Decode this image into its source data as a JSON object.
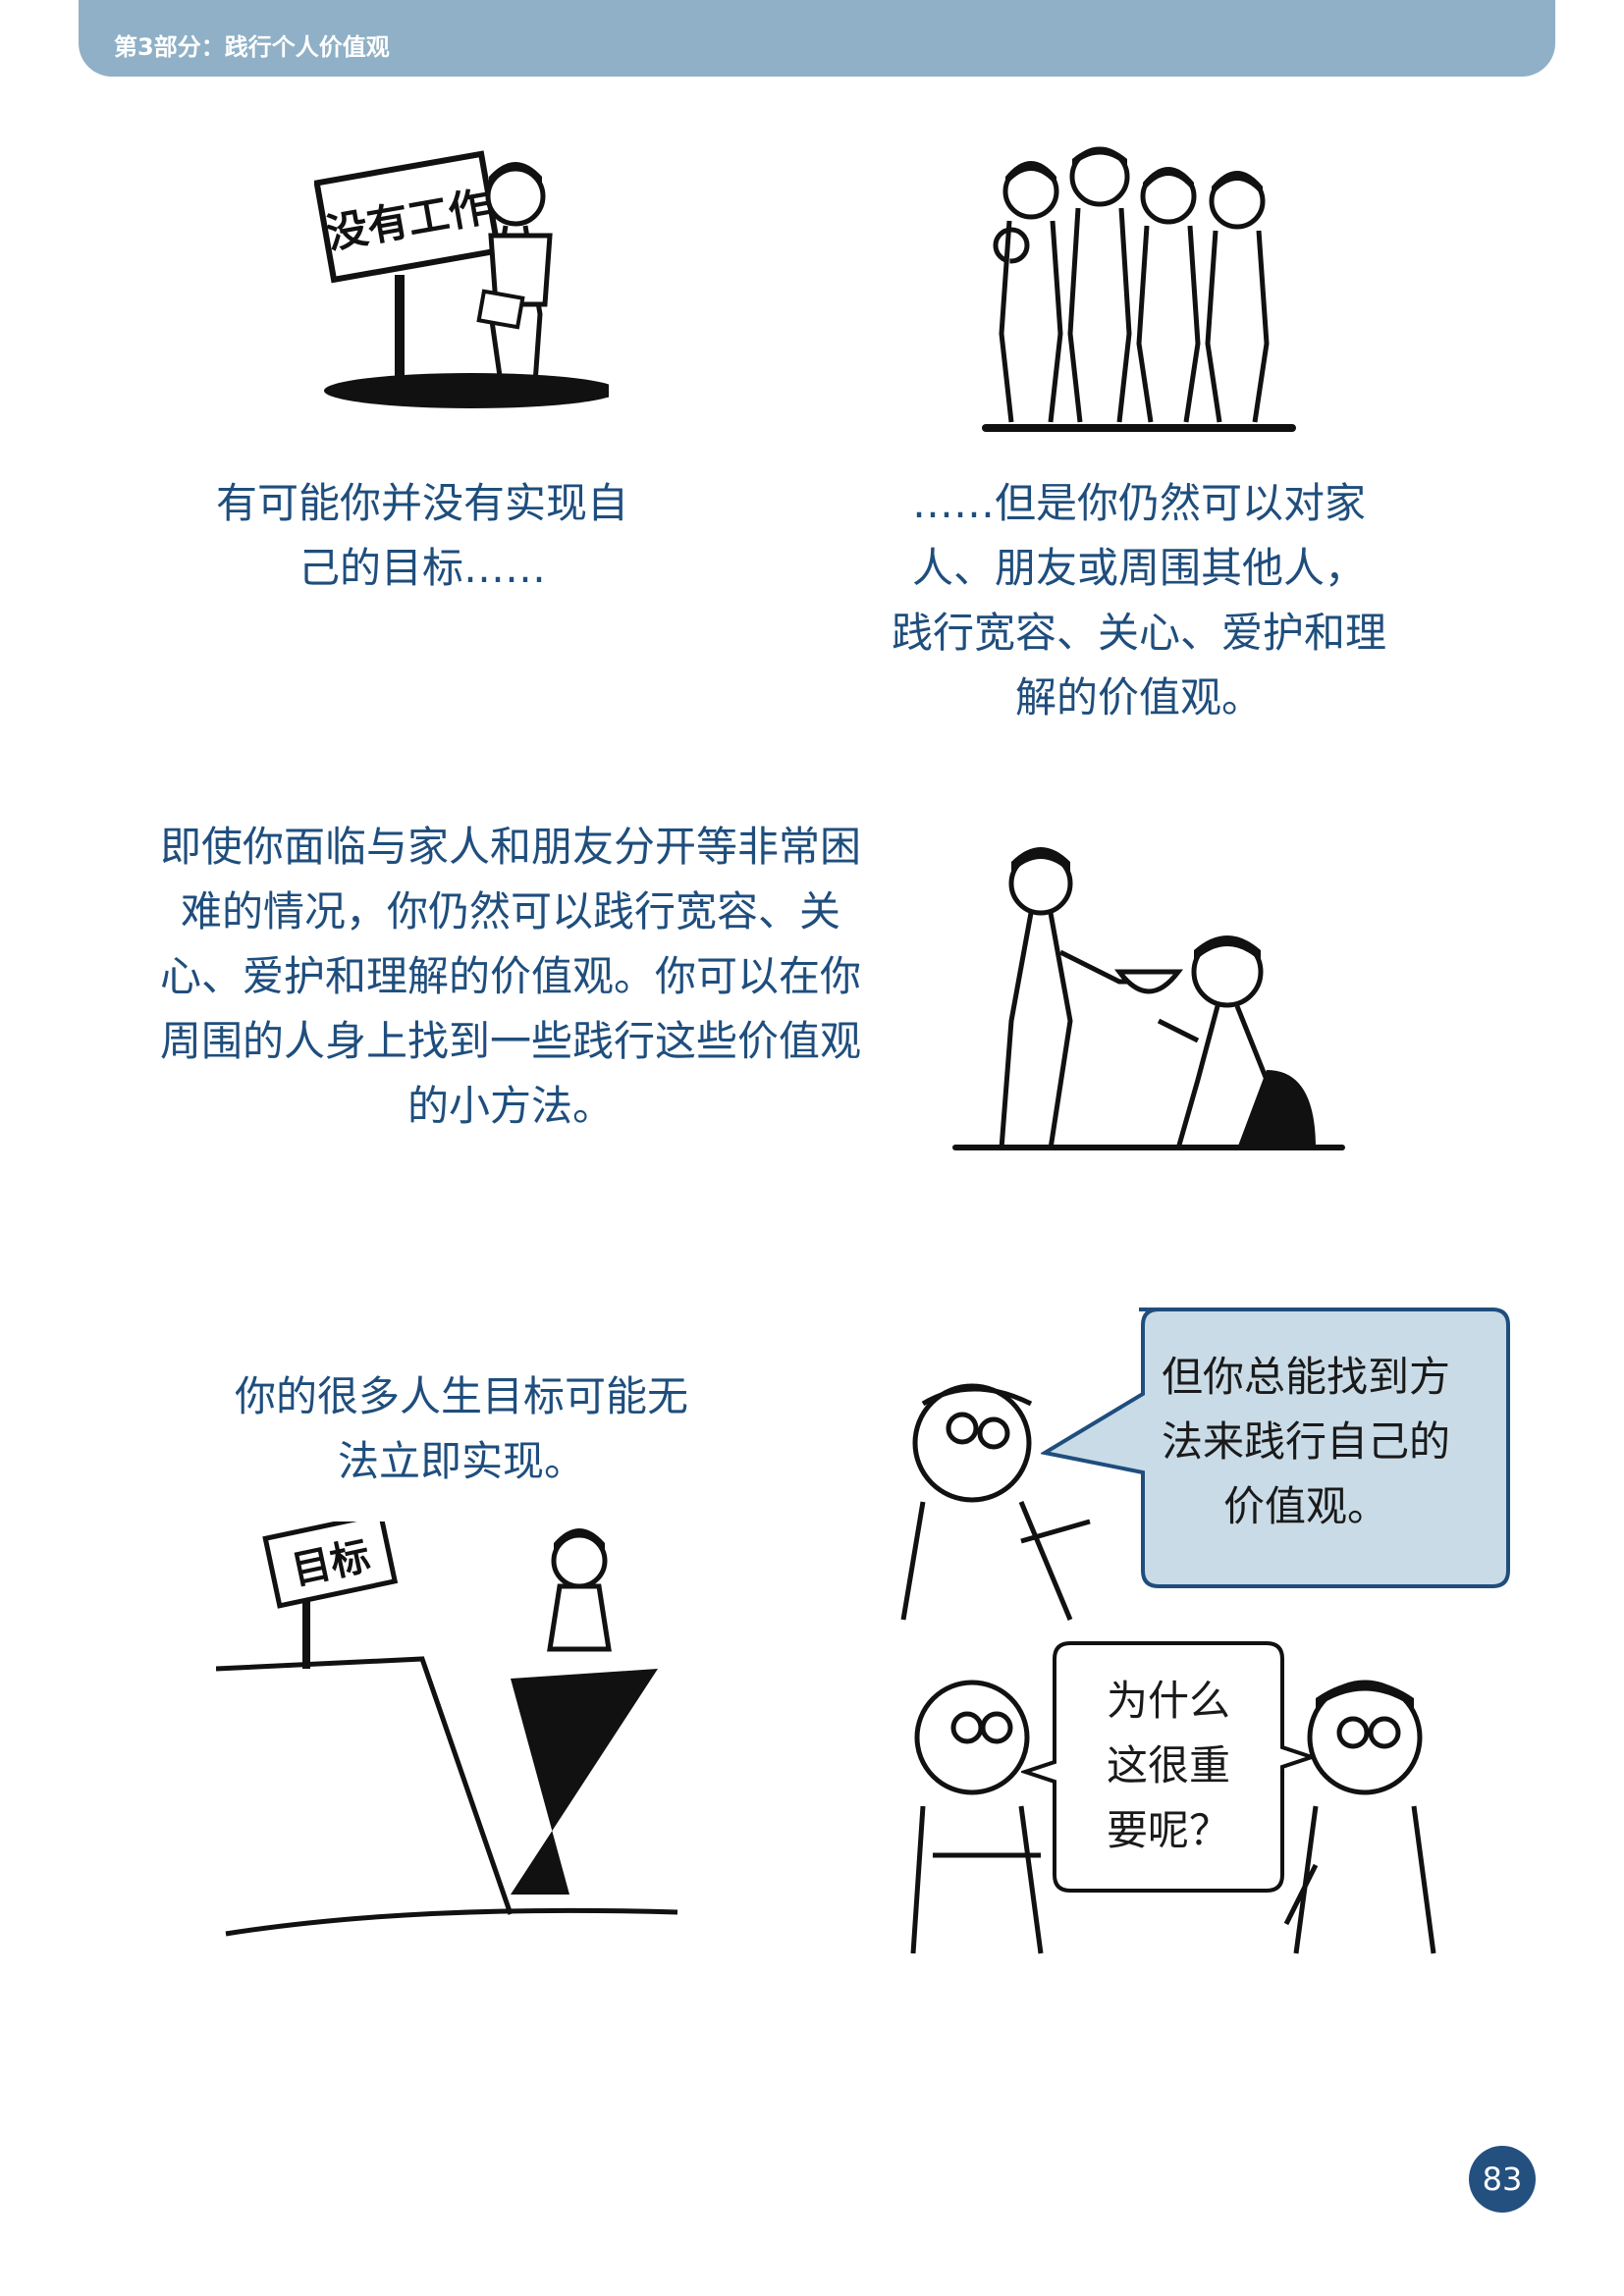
{
  "header": {
    "title": "第3部分：践行个人价值观"
  },
  "panels": {
    "p1": {
      "sign_text": "没有工作",
      "caption_line1": "有可能你并没有实现自",
      "caption_line2": "己的目标……"
    },
    "p2": {
      "caption_line1": "……但是你仍然可以对家",
      "caption_line2": "人、朋友或周围其他人，",
      "caption_line3": "践行宽容、关心、爱护和理",
      "caption_line4": "解的价值观。"
    },
    "p3": {
      "caption_line1": "即使你面临与家人和朋友分开等非常困",
      "caption_line2": "难的情况，你仍然可以践行宽容、关",
      "caption_line3": "心、爱护和理解的价值观。你可以在你",
      "caption_line4": "周围的人身上找到一些践行这些价值观",
      "caption_line5": "的小方法。"
    },
    "p4": {
      "sign_text": "目标",
      "caption_line1": "你的很多人生目标可能无",
      "caption_line2": "法立即实现。"
    },
    "p5": {
      "bubble_line1": "但你总能找到方",
      "bubble_line2": "法来践行自己的",
      "bubble_line3": "价值观。"
    },
    "p6": {
      "bubble_line1": "为什么",
      "bubble_line2": "这很重",
      "bubble_line3": "要呢？"
    }
  },
  "page_number": "83",
  "colors": {
    "header_bg": "#8fb0c6",
    "caption_text": "#1f4e7d",
    "bubble_fill": "#c9dbe6",
    "bubble_stroke": "#1f4e7d",
    "page_badge": "#23507f"
  }
}
